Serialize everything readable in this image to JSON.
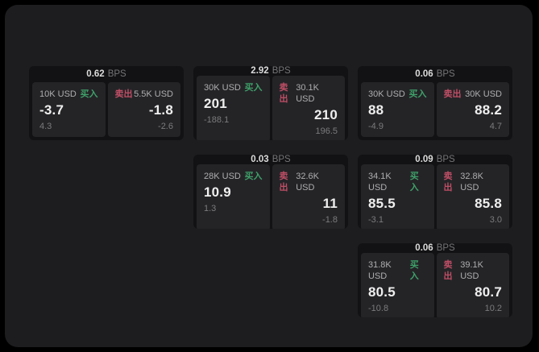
{
  "page": {
    "background": "#000000",
    "panel_background": "#1d1d1f",
    "card_background": "#121214",
    "tile_background": "#242427"
  },
  "labels": {
    "bps": "BPS",
    "buy": "买入",
    "sell": "卖出"
  },
  "colors": {
    "buy_label": "#3fa06a",
    "sell_label": "#bf4e66"
  },
  "cards": [
    {
      "bps": "0.62",
      "column": 1,
      "row": 1,
      "buy": {
        "amount": "10K USD",
        "value": "-3.7",
        "sub_value": "4.3"
      },
      "sell": {
        "amount": "5.5K USD",
        "value": "-1.8",
        "sub_value": "-2.6"
      }
    },
    {
      "bps": "2.92",
      "column": 2,
      "row": 1,
      "buy": {
        "amount": "30K USD",
        "value": "201",
        "sub_value": "-188.1"
      },
      "sell": {
        "amount": "30.1K USD",
        "value": "210",
        "sub_value": "196.5"
      }
    },
    {
      "bps": "0.03",
      "column": 2,
      "row": 2,
      "buy": {
        "amount": "28K USD",
        "value": "10.9",
        "sub_value": "1.3"
      },
      "sell": {
        "amount": "32.6K USD",
        "value": "11",
        "sub_value": "-1.8"
      }
    },
    {
      "bps": "0.06",
      "column": 3,
      "row": 1,
      "buy": {
        "amount": "30K USD",
        "value": "88",
        "sub_value": "-4.9"
      },
      "sell": {
        "amount": "30K USD",
        "value": "88.2",
        "sub_value": "4.7"
      }
    },
    {
      "bps": "0.09",
      "column": 3,
      "row": 2,
      "buy": {
        "amount": "34.1K USD",
        "value": "85.5",
        "sub_value": "-3.1"
      },
      "sell": {
        "amount": "32.8K USD",
        "value": "85.8",
        "sub_value": "3.0"
      }
    },
    {
      "bps": "0.06",
      "column": 3,
      "row": 3,
      "buy": {
        "amount": "31.8K USD",
        "value": "80.5",
        "sub_value": "-10.8"
      },
      "sell": {
        "amount": "39.1K USD",
        "value": "80.7",
        "sub_value": "10.2"
      }
    }
  ]
}
